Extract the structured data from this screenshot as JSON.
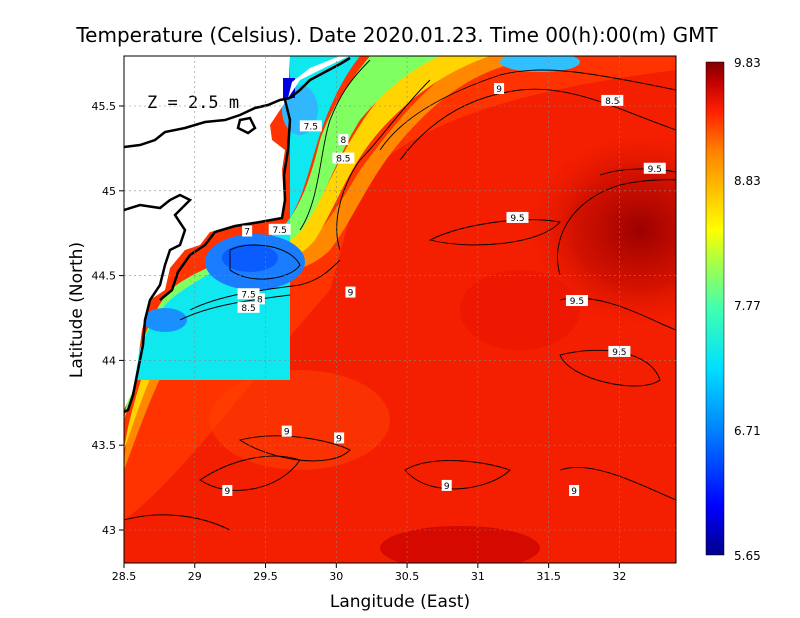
{
  "chart_data": {
    "type": "heatmap",
    "title": "Temperature (Celsius). Date 2020.01.23. Time 00(h):00(m)  GMT",
    "xlabel": "Langitude (East)",
    "ylabel": "Latitude (North)",
    "annotation": "Z = 2.5 m",
    "xlim": [
      28.5,
      32.4
    ],
    "ylim": [
      42.8,
      45.8
    ],
    "xticks": [
      {
        "value": 28.5,
        "label": "28.5"
      },
      {
        "value": 29,
        "label": "29"
      },
      {
        "value": 29.5,
        "label": "29.5"
      },
      {
        "value": 30,
        "label": "30"
      },
      {
        "value": 30.5,
        "label": "30.5"
      },
      {
        "value": 31,
        "label": "31"
      },
      {
        "value": 31.5,
        "label": "31.5"
      },
      {
        "value": 32,
        "label": "32"
      }
    ],
    "yticks": [
      {
        "value": 43,
        "label": "43"
      },
      {
        "value": 43.5,
        "label": "43.5"
      },
      {
        "value": 44,
        "label": "44"
      },
      {
        "value": 44.5,
        "label": "44.5"
      },
      {
        "value": 45,
        "label": "45"
      },
      {
        "value": 45.5,
        "label": "45.5"
      }
    ],
    "grid": true,
    "colorbar": {
      "min": 5.65,
      "max": 9.83,
      "ticks": [
        "9.83",
        "8.83",
        "7.77",
        "6.71",
        "5.65"
      ],
      "tick_values": [
        9.83,
        8.83,
        7.77,
        6.71,
        5.65
      ],
      "colors": [
        "#00008b",
        "#0000ff",
        "#0080ff",
        "#00e0ff",
        "#40ffb0",
        "#b0ff40",
        "#ffff00",
        "#ffc000",
        "#ff8000",
        "#ff2000",
        "#c00000",
        "#800000"
      ]
    },
    "contour_labels": [
      {
        "label": "9",
        "lon": 31.15,
        "lat": 45.6
      },
      {
        "label": "8.5",
        "lon": 31.95,
        "lat": 45.53
      },
      {
        "label": "7.5",
        "lon": 29.82,
        "lat": 45.38
      },
      {
        "label": "8",
        "lon": 30.05,
        "lat": 45.3
      },
      {
        "label": "8.5",
        "lon": 30.05,
        "lat": 45.19
      },
      {
        "label": "9.5",
        "lon": 32.25,
        "lat": 45.13
      },
      {
        "label": "9.5",
        "lon": 31.28,
        "lat": 44.84
      },
      {
        "label": "7",
        "lon": 29.37,
        "lat": 44.76
      },
      {
        "label": "7.5",
        "lon": 29.6,
        "lat": 44.77
      },
      {
        "label": "9",
        "lon": 30.1,
        "lat": 44.4
      },
      {
        "label": "7.5",
        "lon": 29.38,
        "lat": 44.39
      },
      {
        "label": "8",
        "lon": 29.46,
        "lat": 44.36
      },
      {
        "label": "8.5",
        "lon": 29.38,
        "lat": 44.31
      },
      {
        "label": "9.5",
        "lon": 31.7,
        "lat": 44.35
      },
      {
        "label": "9.5",
        "lon": 32.0,
        "lat": 44.05
      },
      {
        "label": "9",
        "lon": 29.65,
        "lat": 43.58
      },
      {
        "label": "9",
        "lon": 30.02,
        "lat": 43.54
      },
      {
        "label": "9",
        "lon": 29.23,
        "lat": 43.23
      },
      {
        "label": "9",
        "lon": 30.78,
        "lat": 43.26
      },
      {
        "label": "9",
        "lon": 31.68,
        "lat": 43.23
      }
    ]
  }
}
